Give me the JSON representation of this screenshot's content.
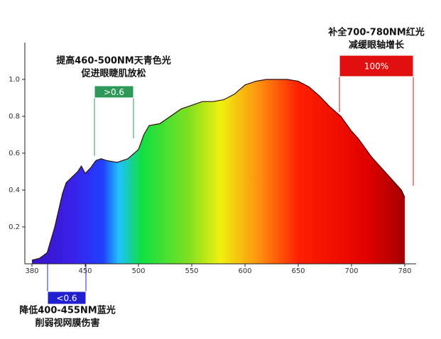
{
  "chart_data": {
    "type": "area",
    "x": [
      380,
      390,
      400,
      410,
      420,
      425,
      430,
      440,
      445,
      450,
      455,
      460,
      465,
      470,
      480,
      490,
      500,
      505,
      510,
      520,
      530,
      540,
      550,
      560,
      570,
      580,
      590,
      600,
      610,
      620,
      630,
      640,
      650,
      660,
      670,
      680,
      690,
      700,
      710,
      720,
      730,
      740,
      750,
      760,
      770,
      775,
      780
    ],
    "values": [
      0.02,
      0.03,
      0.06,
      0.2,
      0.38,
      0.44,
      0.46,
      0.5,
      0.53,
      0.49,
      0.52,
      0.56,
      0.57,
      0.56,
      0.55,
      0.57,
      0.62,
      0.7,
      0.75,
      0.76,
      0.8,
      0.84,
      0.86,
      0.88,
      0.88,
      0.89,
      0.92,
      0.97,
      0.99,
      1.0,
      1.0,
      1.0,
      0.99,
      0.96,
      0.91,
      0.85,
      0.8,
      0.72,
      0.68,
      0.63,
      0.58,
      0.54,
      0.5,
      0.46,
      0.42,
      0.4,
      0.36
    ],
    "ylim": [
      0,
      1.2
    ],
    "yticks": [
      0.2,
      0.4,
      0.6,
      0.8,
      {
        "value": 1.0,
        "label": "1.0"
      }
    ],
    "xticks": [
      380,
      450,
      500,
      550,
      600,
      650,
      700,
      780
    ],
    "annotations": [
      {
        "lines": [
          "提高460-500NM天青色光",
          "促进眼睫肌放松"
        ],
        "box": ">0.6",
        "color": "#2e9a5a"
      },
      {
        "lines": [
          "补全700-780NM红光",
          "减缓眼轴增长"
        ],
        "box": "100%",
        "color": "#e01010"
      },
      {
        "lines": [
          "降低400-455NM蓝光",
          "削弱视网膜伤害"
        ],
        "box": "<0.6",
        "color": "#2020d0"
      }
    ]
  }
}
